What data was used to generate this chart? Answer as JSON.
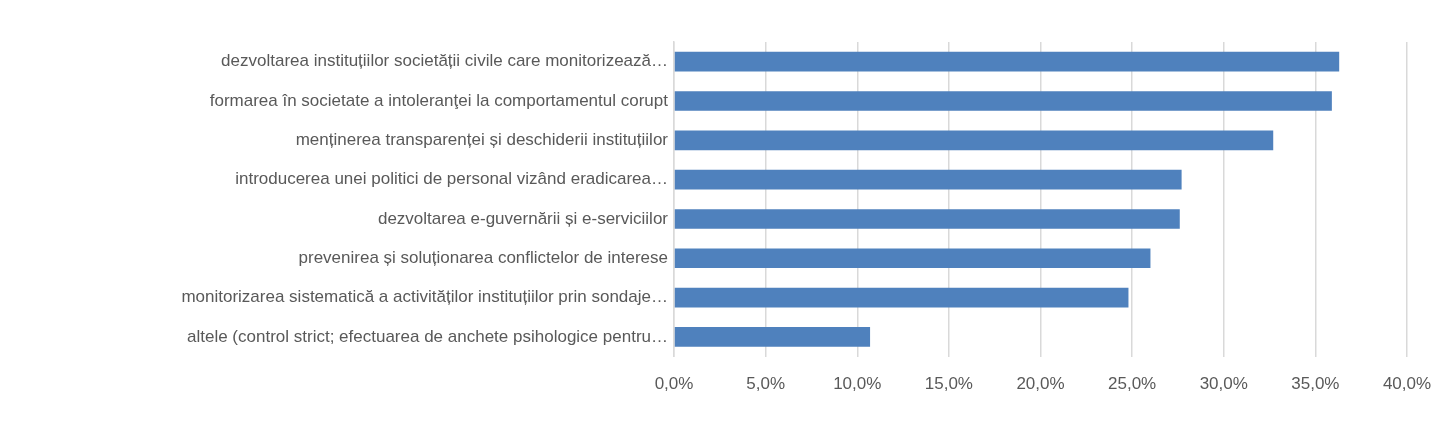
{
  "chart_data": {
    "type": "bar",
    "orientation": "horizontal",
    "categories": [
      "dezvoltarea instituțiilor societății civile care monitorizează…",
      "formarea în societate a intoleranţei la comportamentul corupt",
      "menținerea transparenței și deschiderii instituțiilor",
      "introducerea unei politici de personal vizând eradicarea…",
      "dezvoltarea e-guvernării și e-serviciilor",
      "prevenirea și soluționarea conflictelor de interese",
      "monitorizarea sistematică a activităților instituțiilor prin sondaje…",
      "altele (control strict; efectuarea de anchete psihologice pentru…"
    ],
    "values": [
      36.3,
      35.9,
      32.7,
      27.7,
      27.6,
      26.0,
      24.8,
      10.7
    ],
    "color": "#4f81bd",
    "xlim": [
      0,
      40
    ],
    "xticks": [
      {
        "value": 0,
        "label": "0,0%"
      },
      {
        "value": 5,
        "label": "5,0%"
      },
      {
        "value": 10,
        "label": "10,0%"
      },
      {
        "value": 15,
        "label": "15,0%"
      },
      {
        "value": 20,
        "label": "20,0%"
      },
      {
        "value": 25,
        "label": "25,0%"
      },
      {
        "value": 30,
        "label": "30,0%"
      },
      {
        "value": 35,
        "label": "35,0%"
      },
      {
        "value": 40,
        "label": "40,0%"
      }
    ],
    "grid": "x",
    "legend": false
  }
}
